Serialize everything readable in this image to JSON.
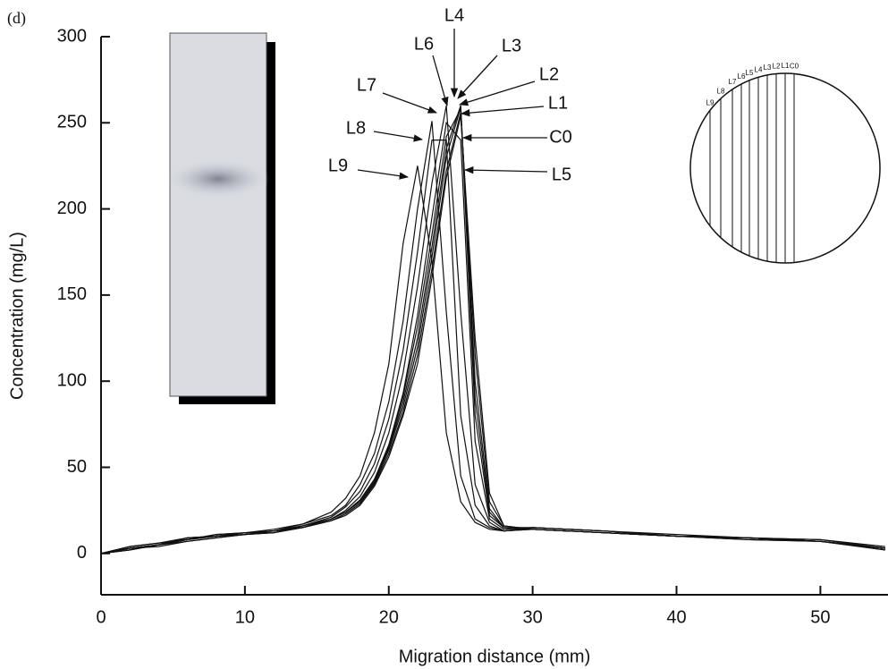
{
  "chart_data": {
    "type": "line",
    "panel_label": "(d)",
    "x_label": "Migration distance (mm)",
    "y_label": "Concentration (mg/L)",
    "xlim": [
      0,
      54.7
    ],
    "ylim": [
      -24,
      300
    ],
    "xticks": [
      0,
      10,
      20,
      30,
      40,
      50
    ],
    "yticks": [
      0,
      50,
      100,
      150,
      200,
      250,
      300
    ],
    "x": [
      0,
      2,
      4,
      6,
      8,
      10,
      12,
      14,
      16,
      17,
      18,
      19,
      20,
      21,
      22,
      23,
      24,
      25,
      26,
      27,
      28,
      30,
      35,
      40,
      45,
      50,
      54.5
    ],
    "series": [
      {
        "name": "C0",
        "color": "#111111",
        "values": [
          0,
          3,
          5,
          8,
          10,
          11,
          12,
          15,
          19,
          23,
          29,
          40,
          58,
          82,
          115,
          165,
          222,
          256,
          115,
          30,
          16,
          14,
          12,
          10,
          9,
          7,
          3
        ]
      },
      {
        "name": "L1",
        "color": "#111111",
        "values": [
          0,
          4,
          6,
          9,
          10,
          12,
          13,
          15,
          19,
          23,
          29,
          41,
          60,
          85,
          120,
          172,
          230,
          259,
          100,
          26,
          15,
          14,
          12,
          10,
          9,
          7,
          3
        ]
      },
      {
        "name": "L2",
        "color": "#111111",
        "values": [
          0,
          2,
          5,
          8,
          11,
          12,
          12,
          16,
          20,
          24,
          30,
          42,
          61,
          88,
          125,
          178,
          235,
          260,
          90,
          24,
          15,
          15,
          13,
          11,
          9,
          8,
          4
        ]
      },
      {
        "name": "L3",
        "color": "#111111",
        "values": [
          0,
          3,
          4,
          7,
          9,
          11,
          13,
          15,
          20,
          24,
          31,
          43,
          62,
          91,
          132,
          185,
          242,
          258,
          80,
          22,
          15,
          14,
          12,
          10,
          8,
          7,
          3
        ]
      },
      {
        "name": "L4",
        "color": "#111111",
        "values": [
          0,
          4,
          6,
          8,
          10,
          12,
          13,
          16,
          20,
          24,
          31,
          43,
          63,
          93,
          138,
          195,
          250,
          240,
          65,
          20,
          14,
          15,
          13,
          10,
          9,
          7,
          3
        ]
      },
      {
        "name": "L5",
        "color": "#111111",
        "values": [
          0,
          3,
          5,
          9,
          10,
          11,
          12,
          15,
          19,
          22,
          28,
          39,
          56,
          80,
          110,
          160,
          218,
          254,
          125,
          35,
          16,
          14,
          12,
          10,
          9,
          7,
          2
        ]
      },
      {
        "name": "L6",
        "color": "#111111",
        "values": [
          0,
          2,
          5,
          7,
          9,
          11,
          13,
          15,
          20,
          25,
          33,
          47,
          70,
          105,
          155,
          215,
          260,
          140,
          40,
          18,
          13,
          14,
          12,
          10,
          9,
          7,
          3
        ]
      },
      {
        "name": "L7",
        "color": "#111111",
        "values": [
          0,
          4,
          6,
          8,
          10,
          12,
          13,
          16,
          21,
          27,
          36,
          52,
          78,
          118,
          175,
          240,
          240,
          80,
          28,
          16,
          13,
          14,
          12,
          10,
          9,
          8,
          3
        ]
      },
      {
        "name": "L8",
        "color": "#111111",
        "values": [
          0,
          3,
          5,
          8,
          11,
          12,
          14,
          17,
          22,
          28,
          40,
          58,
          88,
          135,
          200,
          251,
          140,
          45,
          20,
          15,
          13,
          15,
          13,
          10,
          8,
          7,
          3
        ]
      },
      {
        "name": "L9",
        "color": "#111111",
        "values": [
          0,
          2,
          5,
          9,
          10,
          12,
          13,
          17,
          24,
          32,
          45,
          70,
          110,
          180,
          225,
          170,
          70,
          30,
          18,
          14,
          13,
          15,
          13,
          10,
          9,
          7,
          2
        ]
      }
    ]
  }
}
